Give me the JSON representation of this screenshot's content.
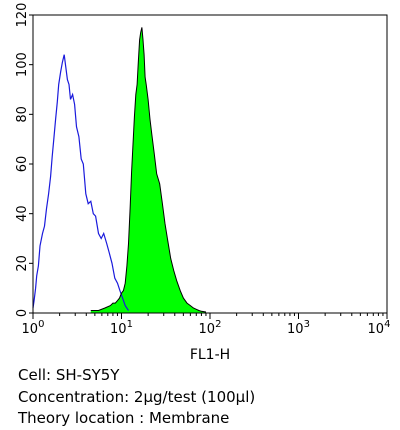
{
  "chart_data": {
    "type": "area",
    "xlabel": "FL1-H",
    "ylabel": "",
    "xscale": "log",
    "xlim": [
      1,
      10000
    ],
    "ylim": [
      0,
      120
    ],
    "y_ticks": [
      "0",
      "20",
      "40",
      "60",
      "80",
      "100",
      "120"
    ],
    "x_ticks": [
      {
        "base": "10",
        "exp": "0"
      },
      {
        "base": "10",
        "exp": "1"
      },
      {
        "base": "10",
        "exp": "2"
      },
      {
        "base": "10",
        "exp": "3"
      },
      {
        "base": "10",
        "exp": "4"
      }
    ],
    "grid": false,
    "series": [
      {
        "role": "control",
        "style": "outline",
        "color": "#1a1adc",
        "x": [
          1.0,
          1.03,
          1.07,
          1.1,
          1.15,
          1.2,
          1.28,
          1.35,
          1.42,
          1.5,
          1.58,
          1.65,
          1.72,
          1.8,
          1.88,
          1.95,
          2.05,
          2.15,
          2.25,
          2.35,
          2.45,
          2.55,
          2.65,
          2.8,
          2.95,
          3.1,
          3.3,
          3.5,
          3.7,
          3.95,
          4.2,
          4.5,
          4.8,
          5.1,
          5.5,
          5.9,
          6.3,
          6.8,
          7.3,
          7.8,
          8.4,
          9.0,
          9.6,
          10.3,
          11.0,
          12.0
        ],
        "y": [
          2,
          5,
          10,
          15,
          19,
          27,
          32,
          35,
          42,
          48,
          55,
          63,
          70,
          78,
          85,
          92,
          97,
          101,
          104,
          99,
          94,
          92,
          86,
          88,
          84,
          75,
          71,
          62,
          60,
          48,
          44,
          45,
          40,
          39,
          32,
          30,
          32,
          28,
          24,
          20,
          14,
          12,
          9,
          6,
          3,
          1
        ]
      },
      {
        "role": "sample",
        "style": "filled",
        "color": "#00ff00",
        "x": [
          4.5,
          5.5,
          6.5,
          7.5,
          8.0,
          8.5,
          9.0,
          9.5,
          10.0,
          10.5,
          11.0,
          11.5,
          12.0,
          12.5,
          13.0,
          13.5,
          14.0,
          14.5,
          15.0,
          15.5,
          16.0,
          16.5,
          17.0,
          17.5,
          18.0,
          18.5,
          19.0,
          20.0,
          21.0,
          22.0,
          23.5,
          25.0,
          27.0,
          29.0,
          31.0,
          33.0,
          36.0,
          39.0,
          42.0,
          46.0,
          50.0,
          55.0,
          60.0,
          65.0,
          70.0,
          75.0,
          80.0,
          90.0
        ],
        "y": [
          1,
          1,
          2,
          3,
          4,
          4,
          5,
          6,
          8,
          9,
          12,
          19,
          28,
          42,
          57,
          68,
          79,
          88,
          92,
          101,
          110,
          113,
          115,
          110,
          104,
          95,
          92,
          86,
          78,
          72,
          64,
          56,
          52,
          44,
          36,
          30,
          22,
          17,
          13,
          9,
          6,
          4,
          3,
          2,
          1.5,
          1,
          0.7,
          0.4
        ]
      }
    ]
  },
  "caption": [
    "Cell: SH-SY5Y",
    "Concentration: 2μg/test (100μl)",
    "Theory location : Membrane"
  ]
}
